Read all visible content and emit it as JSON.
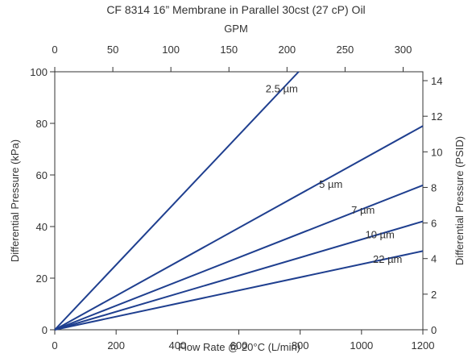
{
  "chart_data": {
    "type": "line",
    "title": "CF 8314 16” Membrane in Parallel 30cst (27 cP) Oil",
    "xlabel": "Flow Rate @ 20°C (L/min)",
    "ylabel": "Differential Pressure (kPa)",
    "x2label": "GPM",
    "y2label": "Differential Pressure (PSID)",
    "xlim": [
      0,
      1200
    ],
    "ylim": [
      0,
      100
    ],
    "x2lim": [
      0,
      317
    ],
    "y2lim": [
      0,
      14.5
    ],
    "xticks": [
      "0",
      "200",
      "400",
      "600",
      "800",
      "1000",
      "1200"
    ],
    "yticks": [
      "0",
      "20",
      "40",
      "60",
      "80",
      "100"
    ],
    "x2ticks": [
      "0",
      "50",
      "100",
      "150",
      "200",
      "250",
      "300"
    ],
    "y2ticks": [
      "0",
      "2",
      "4",
      "6",
      "8",
      "10",
      "12",
      "14"
    ],
    "grid": false,
    "line_color": "#1f3f8f",
    "series": [
      {
        "name": "2.5 µm",
        "x": [
          0,
          795
        ],
        "y": [
          0,
          100
        ],
        "label_at": [
          740,
          92
        ]
      },
      {
        "name": "5 µm",
        "x": [
          0,
          1200
        ],
        "y": [
          0,
          79
        ],
        "label_at": [
          900,
          55
        ]
      },
      {
        "name": "7 µm",
        "x": [
          0,
          1200
        ],
        "y": [
          0,
          56
        ],
        "label_at": [
          1005,
          45
        ]
      },
      {
        "name": "10 µm",
        "x": [
          0,
          1200
        ],
        "y": [
          0,
          42
        ],
        "label_at": [
          1060,
          35.5
        ]
      },
      {
        "name": "22 µm",
        "x": [
          0,
          1200
        ],
        "y": [
          0,
          30.5
        ],
        "label_at": [
          1085,
          26
        ]
      }
    ]
  }
}
